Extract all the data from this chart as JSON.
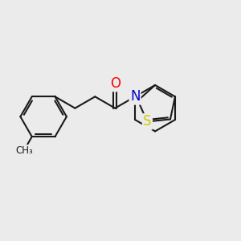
{
  "bg_color": "#ebebeb",
  "bond_color": "#1a1a1a",
  "bond_lw": 1.5,
  "O_color": "#ff0000",
  "N_color": "#0000cc",
  "S_color": "#cccc00",
  "bl": 0.3,
  "fig_w": 3.0,
  "fig_h": 3.0,
  "dpi": 100,
  "xlim": [
    -1.55,
    1.55
  ],
  "ylim": [
    -0.95,
    0.95
  ]
}
